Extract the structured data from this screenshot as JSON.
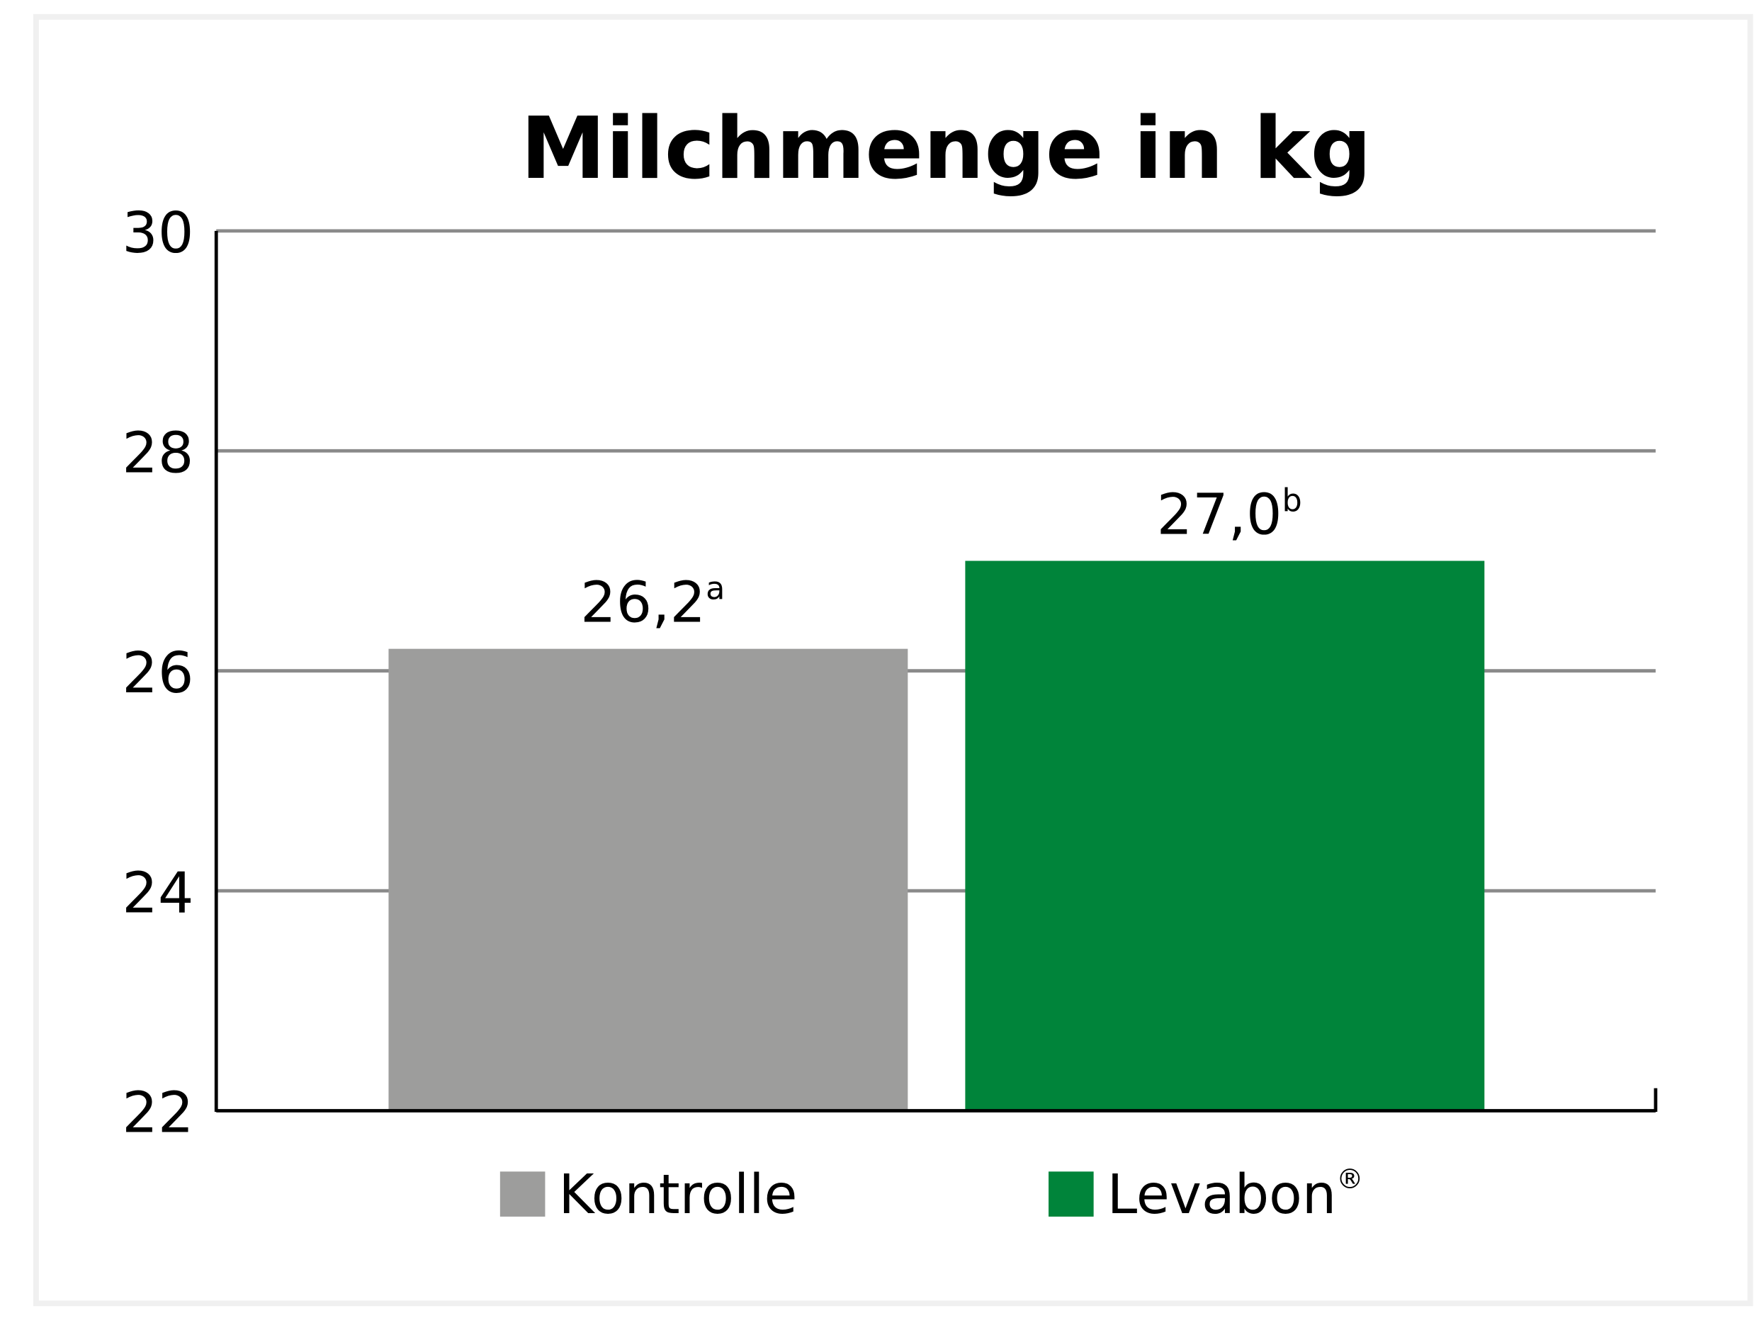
{
  "chart_data": {
    "type": "bar",
    "title": "Milchmenge in kg",
    "xlabel": "",
    "ylabel": "",
    "ylim": [
      22,
      30
    ],
    "yticks": [
      "22",
      "24",
      "26",
      "28",
      "30"
    ],
    "grid": true,
    "legend_placement": "bottom",
    "categories": [
      "Kontrolle",
      "Levabon®"
    ],
    "values": [
      26.2,
      27.0
    ],
    "data_labels": [
      {
        "value": "26,2",
        "superscript": "a"
      },
      {
        "value": "27,0",
        "superscript": "b"
      }
    ],
    "legend": [
      {
        "label": "Kontrolle",
        "superscript": ""
      },
      {
        "label": "Levabon",
        "superscript": "®"
      }
    ],
    "colors": [
      "#9d9d9c",
      "#00843a"
    ],
    "frame_color": "#f0f0f0",
    "grid_color": "#8a8a8a"
  }
}
